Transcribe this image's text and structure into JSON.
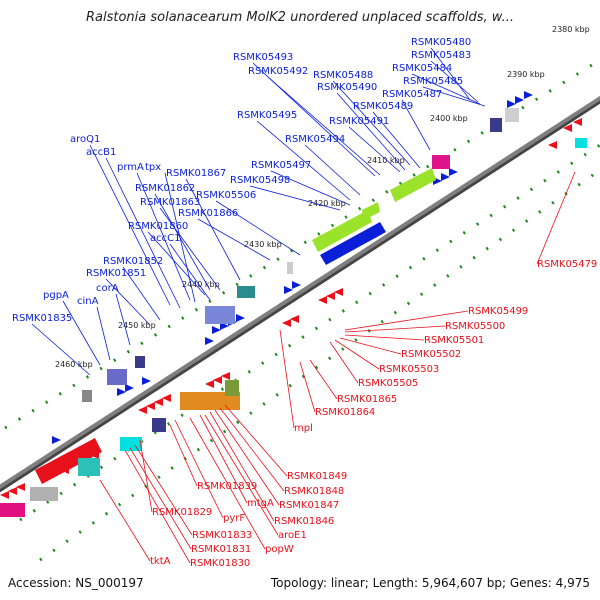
{
  "title": "Ralstonia solanacearum MolK2 unordered unplaced scaffolds, w...",
  "footer": {
    "accession": "Accession: NS_000197",
    "stats": "Topology: linear; Length: 5,964,607 bp; Genes: 4,975"
  },
  "colors": {
    "forward": "#0a1fd8",
    "reverse": "#e8101a",
    "axis": "#7f7f7f",
    "tick": "#1e8a1e"
  },
  "scale_labels": [
    "2380 kbp",
    "2390 kbp",
    "2400 kbp",
    "2410 kbp",
    "2420 kbp",
    "2430 kbp",
    "2440 kbp",
    "2450 kbp",
    "2460 kbp"
  ],
  "forward_genes": [
    "RSMK05480",
    "RSMK05483",
    "RSMK05484",
    "RSMK05485",
    "RSMK05487",
    "RSMK05488",
    "RSMK05489",
    "RSMK05490",
    "RSMK05491",
    "RSMK05492",
    "RSMK05493",
    "RSMK05494",
    "RSMK05495",
    "RSMK05497",
    "RSMK05498",
    "RSMK05506",
    "RSMK01866",
    "RSMK01867",
    "RSMK01862",
    "RSMK01863",
    "RSMK01860",
    "accC1",
    "prmA",
    "tpx",
    "aroQ1",
    "accB1",
    "RSMK01852",
    "RSMK01851",
    "corA",
    "cinA",
    "pgpA",
    "RSMK01835"
  ],
  "reverse_genes": [
    "RSMK05479",
    "RSMK05499",
    "RSMK05500",
    "RSMK05501",
    "RSMK05502",
    "RSMK05503",
    "RSMK05505",
    "RSMK01865",
    "RSMK01864",
    "mpl",
    "RSMK01849",
    "RSMK01848",
    "RSMK01847",
    "RSMK01846",
    "aroE1",
    "mtgA",
    "popW",
    "pyrF",
    "RSMK01839",
    "RSMK01829",
    "RSMK01833",
    "RSMK01831",
    "RSMK01830",
    "tktA"
  ]
}
